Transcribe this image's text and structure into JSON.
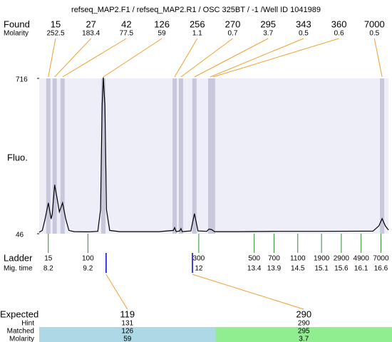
{
  "chart_data": {
    "type": "line",
    "title": "refseq_MAP2.F1 / refseq_MAP2.R1 / OSC 325BT / -1 /Well ID 1041989",
    "ylabel": "Fluo.",
    "xlim": [
      7.97,
      16.79
    ],
    "ylim": [
      46,
      716
    ],
    "yticks": [
      46,
      716
    ],
    "plot_color": "#eeeef8",
    "x": [
      7.97,
      8.05,
      8.12,
      8.2,
      8.27,
      8.3,
      8.36,
      8.42,
      8.48,
      8.56,
      8.64,
      8.72,
      8.85,
      9.2,
      9.45,
      9.52,
      9.56,
      9.59,
      9.63,
      9.67,
      9.75,
      10.0,
      11.0,
      11.36,
      11.39,
      11.43,
      11.52,
      11.55,
      11.58,
      11.8,
      11.85,
      11.89,
      11.93,
      11.98,
      12.2,
      12.26,
      12.32,
      12.4,
      13.0,
      14.0,
      15.0,
      16.4,
      16.55,
      16.63,
      16.71,
      16.79
    ],
    "series": [
      {
        "color": "#000000",
        "values": [
          52,
          60,
          110,
          179,
          110,
          130,
          257,
          200,
          140,
          179,
          110,
          60,
          55,
          54,
          56,
          150,
          600,
          720,
          600,
          150,
          60,
          55,
          55,
          60,
          72,
          55,
          58,
          68,
          55,
          58,
          100,
          133,
          100,
          58,
          56,
          66,
          64,
          55,
          55,
          56,
          56,
          57,
          80,
          111,
          80,
          62
        ]
      }
    ],
    "found": {
      "label": "Found",
      "sizes": [
        15,
        27,
        42,
        126,
        256,
        270,
        295,
        343,
        360,
        7000
      ],
      "times": [
        8.2,
        8.36,
        8.56,
        9.59,
        11.39,
        11.55,
        11.89,
        12.29,
        12.36,
        16.63
      ],
      "molarity_label": "Molarity",
      "molarity": [
        252.5,
        183.4,
        77.5,
        59,
        1.1,
        0.7,
        3.7,
        0.5,
        0.6,
        0.5
      ],
      "band_color": "#c8c8dc",
      "line_color": "#f0a030"
    },
    "ladder": {
      "label": "Ladder",
      "sizes": [
        15,
        100,
        300,
        500,
        700,
        1100,
        1900,
        2900,
        4900,
        7000
      ],
      "time_label": "Mig. time",
      "times": [
        8.2,
        9.2,
        12,
        13.4,
        13.9,
        14.5,
        15.1,
        15.6,
        16.1,
        16.6
      ],
      "color": "#2e8b2e"
    },
    "expected": {
      "label": "Expected",
      "sizes": [
        119,
        290
      ],
      "times": [
        9.66,
        11.84
      ],
      "marker_color": "#0000cc",
      "hint_label": "Hint",
      "hint": [
        131,
        290
      ],
      "matched_label": "Matched",
      "matched": [
        126,
        295
      ],
      "molarity_label": "Molarity",
      "molarity": [
        59,
        3.7
      ],
      "colors": [
        "#add8e6",
        "#90ee90"
      ]
    }
  }
}
